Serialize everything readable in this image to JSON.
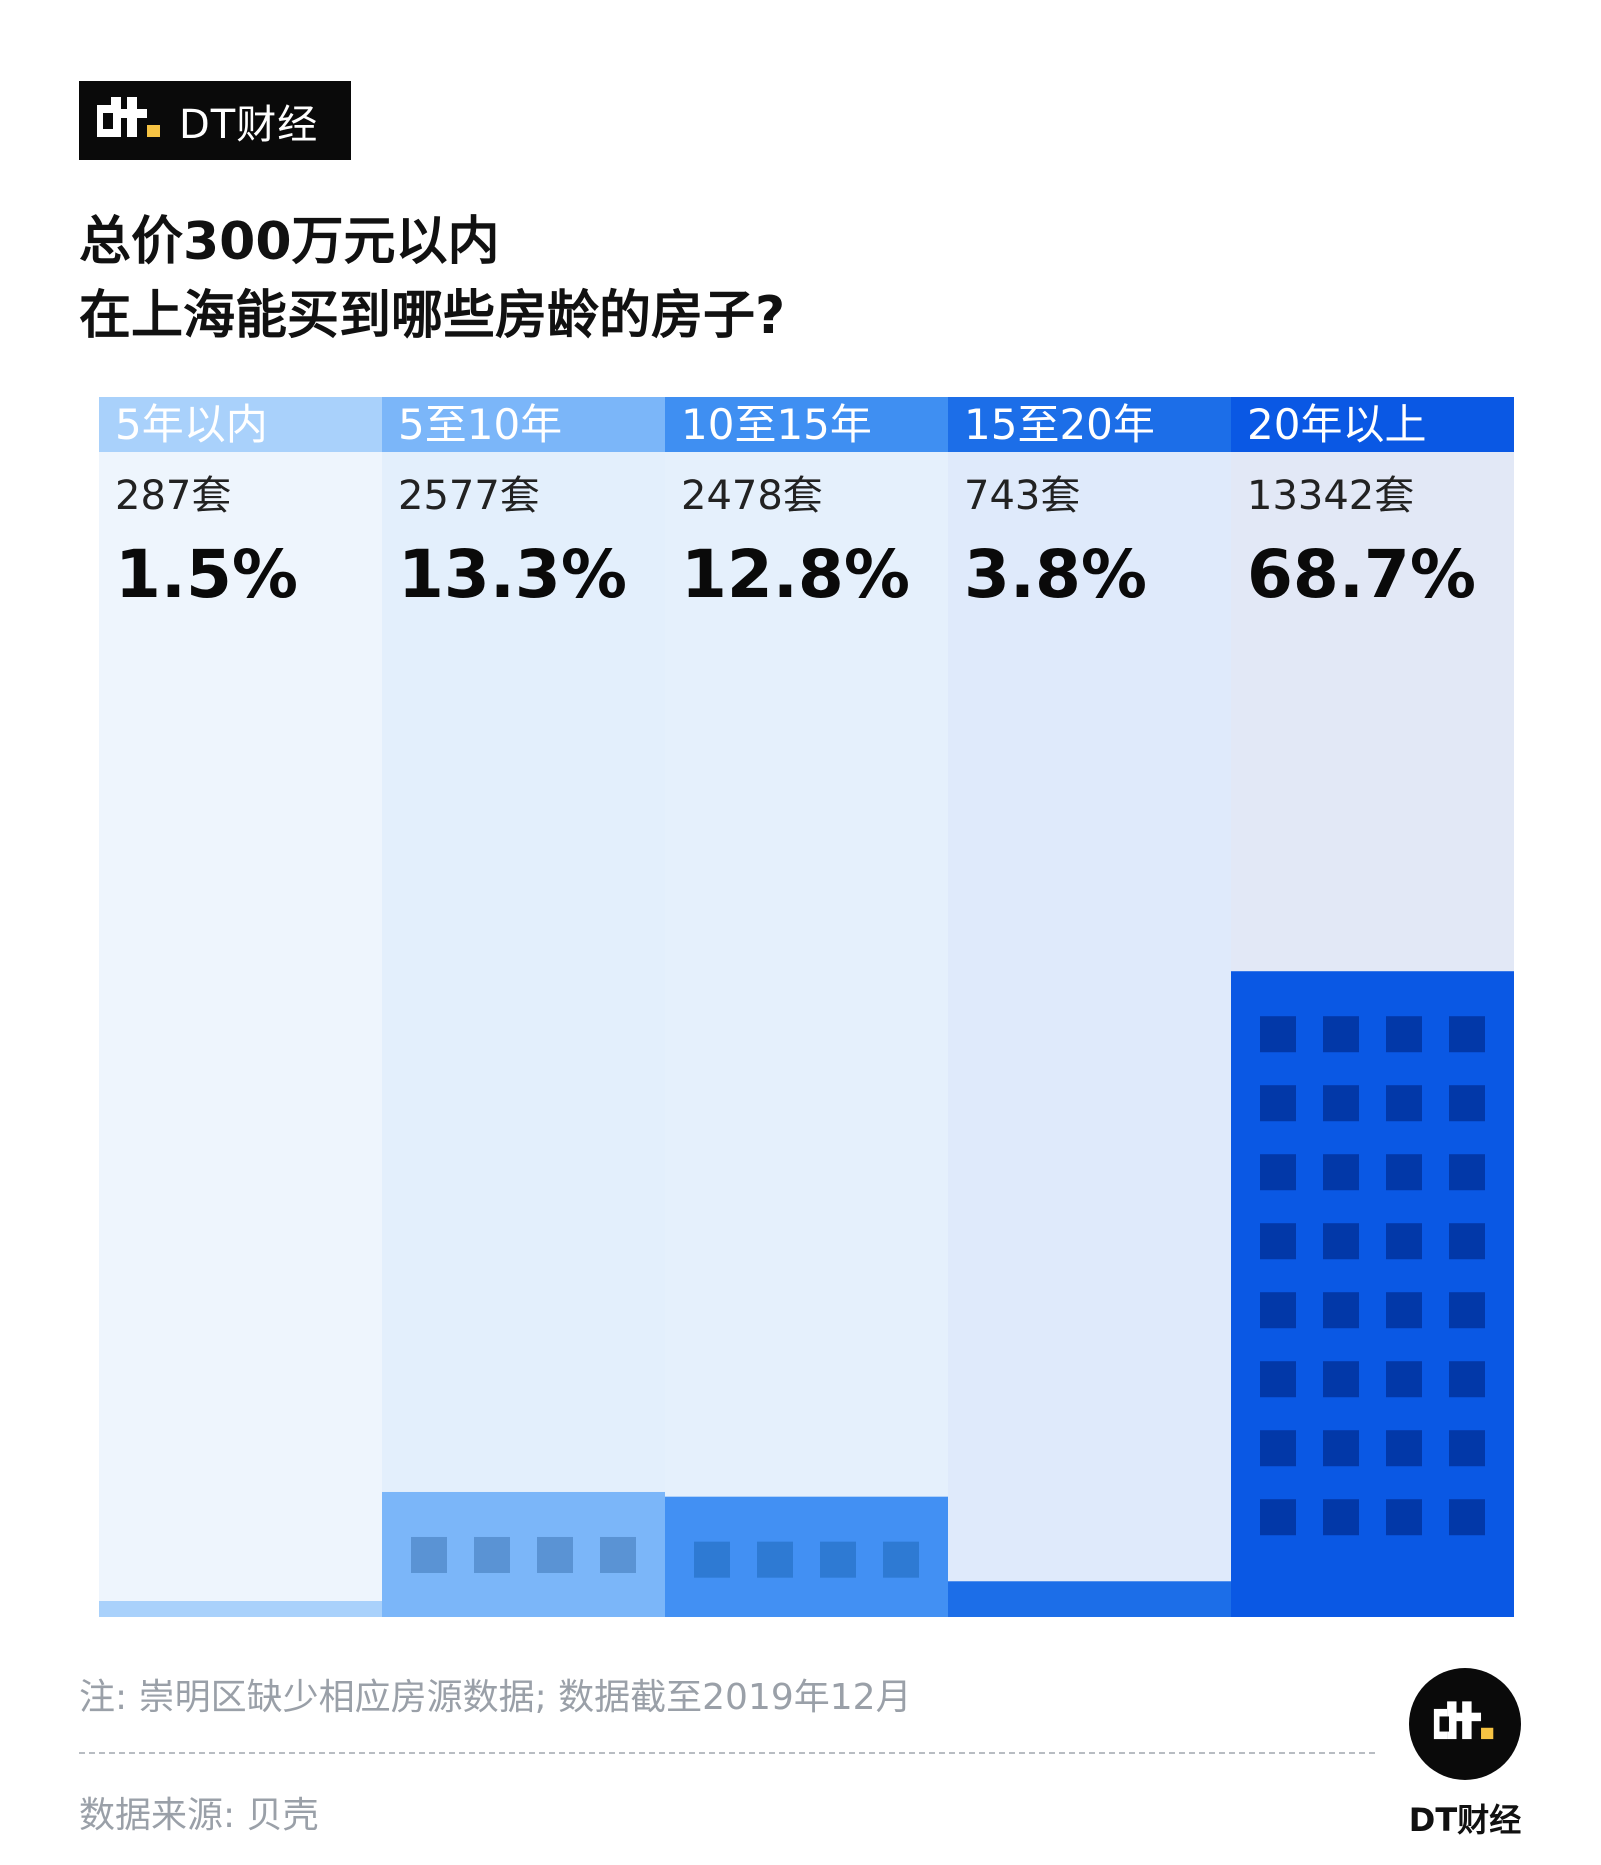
{
  "brand": {
    "name": "DT财经",
    "logo_icon": "dt-logo-icon"
  },
  "title": {
    "line1": "总价300万元以内",
    "line2": "在上海能买到哪些房龄的房子?"
  },
  "chart_data": {
    "type": "bar",
    "title": "总价300万元以内 在上海能买到哪些房龄的房子?",
    "categories": [
      "5年以内",
      "5至10年",
      "10至15年",
      "15至20年",
      "20年以上"
    ],
    "units": [
      "287套",
      "2577套",
      "2478套",
      "743套",
      "13342套"
    ],
    "counts": [
      287,
      2577,
      2478,
      743,
      13342
    ],
    "values": [
      1.5,
      13.3,
      12.8,
      3.8,
      68.7
    ],
    "value_labels": [
      "1.5%",
      "13.3%",
      "12.8%",
      "3.8%",
      "68.7%"
    ],
    "ylim": [
      0,
      100
    ],
    "colors": {
      "header": [
        "#a9d1fb",
        "#7bb6f9",
        "#3f8ff2",
        "#1c6ee8",
        "#0a58e4"
      ],
      "header_text": [
        "#ffffff",
        "#ffffff",
        "#ffffff",
        "#ffffff",
        "#ffffff"
      ],
      "column_bg": [
        "#eef5fd",
        "#e3effc",
        "#e5f0fc",
        "#dfeafb",
        "#e2e8f6"
      ],
      "bar": [
        "#a9d1fb",
        "#7bb6f9",
        "#4290f3",
        "#1c6ee8",
        "#0a58e4"
      ],
      "window": [
        "#a9d1fb",
        "#5a93d4",
        "#2e7ad3",
        "#1c6ee8",
        "#0238a8"
      ]
    }
  },
  "footer": {
    "note": "注: 崇明区缺少相应房源数据; 数据截至2019年12月",
    "source": "数据来源: 贝壳",
    "logo_text": "DT财经"
  }
}
